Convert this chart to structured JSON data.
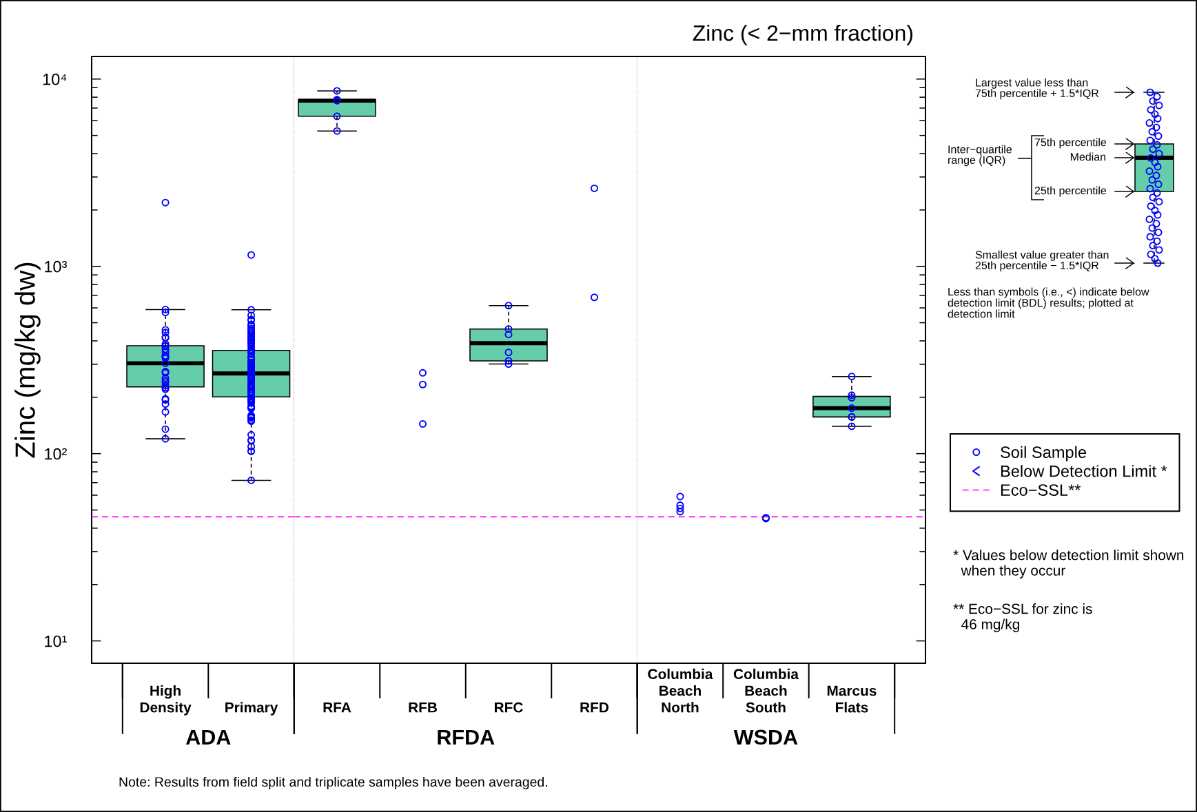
{
  "chart_data": [
    {
      "type": "box",
      "categories": [
        "High\nDensity",
        "Primary"
      ],
      "xlabel": "ADA",
      "ylabel": "Zinc (mg/kg dw)",
      "log": true,
      "ylim": [
        7.6,
        13200
      ],
      "yticks": [
        {
          "value": 10,
          "label": "10¹"
        },
        {
          "value": 20,
          "label": null
        },
        {
          "value": 30,
          "label": null
        },
        {
          "value": 40,
          "label": null
        },
        {
          "value": 50,
          "label": null
        },
        {
          "value": 60,
          "label": null
        },
        {
          "value": 70,
          "label": null
        },
        {
          "value": 80,
          "label": null
        },
        {
          "value": 90,
          "label": null
        },
        {
          "value": 100,
          "label": "10²"
        },
        {
          "value": 200,
          "label": null
        },
        {
          "value": 300,
          "label": null
        },
        {
          "value": 400,
          "label": null
        },
        {
          "value": 500,
          "label": null
        },
        {
          "value": 600,
          "label": null
        },
        {
          "value": 700,
          "label": null
        },
        {
          "value": 800,
          "label": null
        },
        {
          "value": 900,
          "label": null
        },
        {
          "value": 1000,
          "label": "10³"
        },
        {
          "value": 2000,
          "label": null
        },
        {
          "value": 3000,
          "label": null
        },
        {
          "value": 4000,
          "label": null
        },
        {
          "value": 5000,
          "label": null
        },
        {
          "value": 6000,
          "label": null
        },
        {
          "value": 7000,
          "label": null
        },
        {
          "value": 8000,
          "label": null
        },
        {
          "value": 9000,
          "label": null
        },
        {
          "value": 10000,
          "label": "10⁴"
        }
      ],
      "series": [
        {
          "color": "#66cdaa",
          "boxes": [
            {
              "low": 120,
              "q1": 227,
              "median": 304,
              "q3": 377,
              "high": 588
            },
            {
              "low": 72,
              "q1": 201,
              "median": 268,
              "q3": 356,
              "high": 586
            }
          ]
        },
        {
          "type": "scatter",
          "color": "#0000ff",
          "marker": "circle",
          "x": [
            "High\nDensity",
            "High\nDensity",
            "High\nDensity",
            "High\nDensity",
            "High\nDensity",
            "High\nDensity",
            "High\nDensity",
            "High\nDensity",
            "High\nDensity",
            "High\nDensity",
            "High\nDensity",
            "High\nDensity",
            "High\nDensity",
            "High\nDensity",
            "High\nDensity",
            "High\nDensity",
            "High\nDensity",
            "High\nDensity",
            "High\nDensity",
            "High\nDensity",
            "High\nDensity",
            "High\nDensity",
            "High\nDensity",
            "High\nDensity",
            "High\nDensity",
            "High\nDensity",
            "High\nDensity",
            "High\nDensity",
            "High\nDensity",
            "High\nDensity",
            "High\nDensity",
            "Primary",
            "Primary",
            "Primary",
            "Primary",
            "Primary",
            "Primary",
            "Primary",
            "Primary",
            "Primary",
            "Primary",
            "Primary",
            "Primary",
            "Primary",
            "Primary",
            "Primary",
            "Primary",
            "Primary",
            "Primary",
            "Primary",
            "Primary",
            "Primary",
            "Primary",
            "Primary",
            "Primary",
            "Primary",
            "Primary",
            "Primary",
            "Primary",
            "Primary",
            "Primary",
            "Primary",
            "Primary",
            "Primary",
            "Primary",
            "Primary",
            "Primary",
            "Primary",
            "Primary",
            "Primary",
            "Primary",
            "Primary",
            "Primary",
            "Primary",
            "Primary",
            "Primary",
            "Primary",
            "Primary",
            "Primary",
            "Primary",
            "Primary",
            "Primary",
            "Primary",
            "Primary",
            "Primary",
            "Primary",
            "Primary",
            "Primary",
            "Primary",
            "Primary",
            "Primary",
            "Primary",
            "Primary",
            "Primary",
            "Primary",
            "Primary",
            "Primary",
            "Primary",
            "Primary",
            "Primary",
            "Primary",
            "Primary",
            "Primary",
            "Primary",
            "Primary"
          ],
          "values": [
            2190,
            588,
            568,
            458,
            443,
            418,
            415,
            385,
            377,
            374,
            361,
            348,
            332,
            332,
            329,
            323,
            304,
            274,
            270,
            253,
            245,
            241,
            231,
            225,
            221,
            196,
            194,
            184,
            167,
            135,
            120,
            1150,
            586,
            547,
            520,
            514,
            489,
            479,
            466,
            458,
            455,
            443,
            433,
            424,
            418,
            416,
            407,
            398,
            392,
            385,
            374,
            361,
            355,
            351,
            343,
            329,
            324,
            315,
            307,
            305,
            298,
            294,
            290,
            286,
            282,
            279,
            274,
            270,
            266,
            263,
            259,
            255,
            252,
            246,
            239,
            234,
            231,
            228,
            225,
            221,
            215,
            212,
            209,
            204,
            198,
            195,
            192,
            189,
            187,
            179,
            177,
            174,
            160,
            158,
            156,
            155,
            151,
            149,
            126,
            118,
            117,
            109,
            103,
            103,
            72
          ]
        }
      ],
      "ref_lines": [
        {
          "axis": "y",
          "value": 46,
          "color": "#ff00ff",
          "line_style": "dashed"
        }
      ]
    },
    {
      "type": "box",
      "categories": [
        "RFA",
        "RFB",
        "RFC",
        "RFD"
      ],
      "xlabel": "RFDA",
      "log": true,
      "ylim": [
        7.6,
        13200
      ],
      "tick_labels": "x",
      "series": [
        {
          "color": "#66cdaa",
          "boxes": [
            {
              "low": 5280,
              "q1": 6330,
              "median": 7670,
              "q3": 7760,
              "high": 8650
            },
            null,
            {
              "low": 301,
              "q1": 313,
              "median": 389,
              "q3": 463,
              "high": 617
            },
            null
          ]
        },
        {
          "type": "scatter",
          "color": "#0000ff",
          "marker": "circle",
          "x": [
            "RFA",
            "RFA",
            "RFA",
            "RFA",
            "RFA",
            "RFB",
            "RFB",
            "RFB",
            "RFC",
            "RFC",
            "RFC",
            "RFC",
            "RFC",
            "RFC",
            "RFD",
            "RFD"
          ],
          "values": [
            8650,
            7760,
            7670,
            6330,
            5280,
            270,
            234,
            144,
            617,
            463,
            433,
            347,
            313,
            301,
            2610,
            683
          ]
        }
      ],
      "ref_lines": [
        {
          "axis": "y",
          "value": 46,
          "color": "#ff00ff",
          "line_style": "dashed"
        }
      ]
    },
    {
      "type": "box",
      "title": "Zinc (< 2−mm fraction)",
      "categories": [
        "Columbia\nBeach\nNorth",
        "Columbia\nBeach\nSouth",
        "Marcus\nFlats"
      ],
      "xlabel": "WSDA",
      "log": true,
      "ylim": [
        7.6,
        13200
      ],
      "tick_labels": "x",
      "legend": "right",
      "yticks": [
        10,
        {
          "value": 20,
          "label": null
        },
        {
          "value": 30,
          "label": null
        },
        {
          "value": 40,
          "label": null
        },
        {
          "value": 50,
          "label": null
        },
        {
          "value": 60,
          "label": null
        },
        {
          "value": 70,
          "label": null
        },
        {
          "value": 80,
          "label": null
        },
        {
          "value": 90,
          "label": null
        },
        100,
        {
          "value": 200,
          "label": null
        },
        {
          "value": 300,
          "label": null
        },
        {
          "value": 400,
          "label": null
        },
        {
          "value": 500,
          "label": null
        },
        {
          "value": 600,
          "label": null
        },
        {
          "value": 700,
          "label": null
        },
        {
          "value": 800,
          "label": null
        },
        {
          "value": 900,
          "label": null
        },
        1000,
        {
          "value": 2000,
          "label": null
        },
        {
          "value": 3000,
          "label": null
        },
        {
          "value": 4000,
          "label": null
        },
        {
          "value": 5000,
          "label": null
        },
        {
          "value": 6000,
          "label": null
        },
        {
          "value": 7000,
          "label": null
        },
        {
          "value": 8000,
          "label": null
        },
        {
          "value": 9000,
          "label": null
        },
        10000
      ],
      "series": [
        {
          "color": "#66cdaa",
          "boxes": [
            null,
            null,
            {
              "low": 140,
              "q1": 157,
              "median": 175,
              "q3": 202,
              "high": 258
            }
          ]
        },
        {
          "type": "scatter",
          "name": "Soil Sample",
          "color": "#0000ff",
          "marker": "circle",
          "x": [
            "Columbia\nBeach\nNorth",
            "Columbia\nBeach\nNorth",
            "Columbia\nBeach\nNorth",
            "Columbia\nBeach\nNorth",
            "Columbia\nBeach\nSouth",
            "Columbia\nBeach\nSouth",
            "Marcus\nFlats",
            "Marcus\nFlats",
            "Marcus\nFlats",
            "Marcus\nFlats",
            "Marcus\nFlats",
            "Marcus\nFlats",
            "Marcus\nFlats"
          ],
          "values": [
            59,
            53,
            51,
            49,
            45.5,
            45,
            258,
            205,
            199,
            175,
            157,
            157,
            140
          ]
        },
        {
          "type": "scatter",
          "name": "Below Detection Limit *",
          "color": "#0000ff",
          "marker": "less_than",
          "values": [
            null,
            null,
            null
          ]
        }
      ],
      "ref_lines": [
        {
          "axis": "y",
          "value": 46,
          "label": "Eco−SSL**",
          "color": "#ff00ff",
          "line_style": "dashed"
        }
      ],
      "annotations": [
        "Largest value less than\n75th percentile + 1.5*IQR",
        "Inter−quartile\nrange (IQR)",
        "75th percentile",
        "Median",
        "25th percentile",
        "Smallest value greater than\n25th percentile − 1.5*IQR",
        "Less than symbols (i.e., <) indicate below\ndetection limit (BDL) results; plotted at\ndetection limit",
        "* Values below detection limit shown\n  when they occur",
        "** Eco−SSL for zinc is\n  46 mg/kg",
        "Note: Results from field split and triplicate samples have been averaged."
      ]
    }
  ]
}
